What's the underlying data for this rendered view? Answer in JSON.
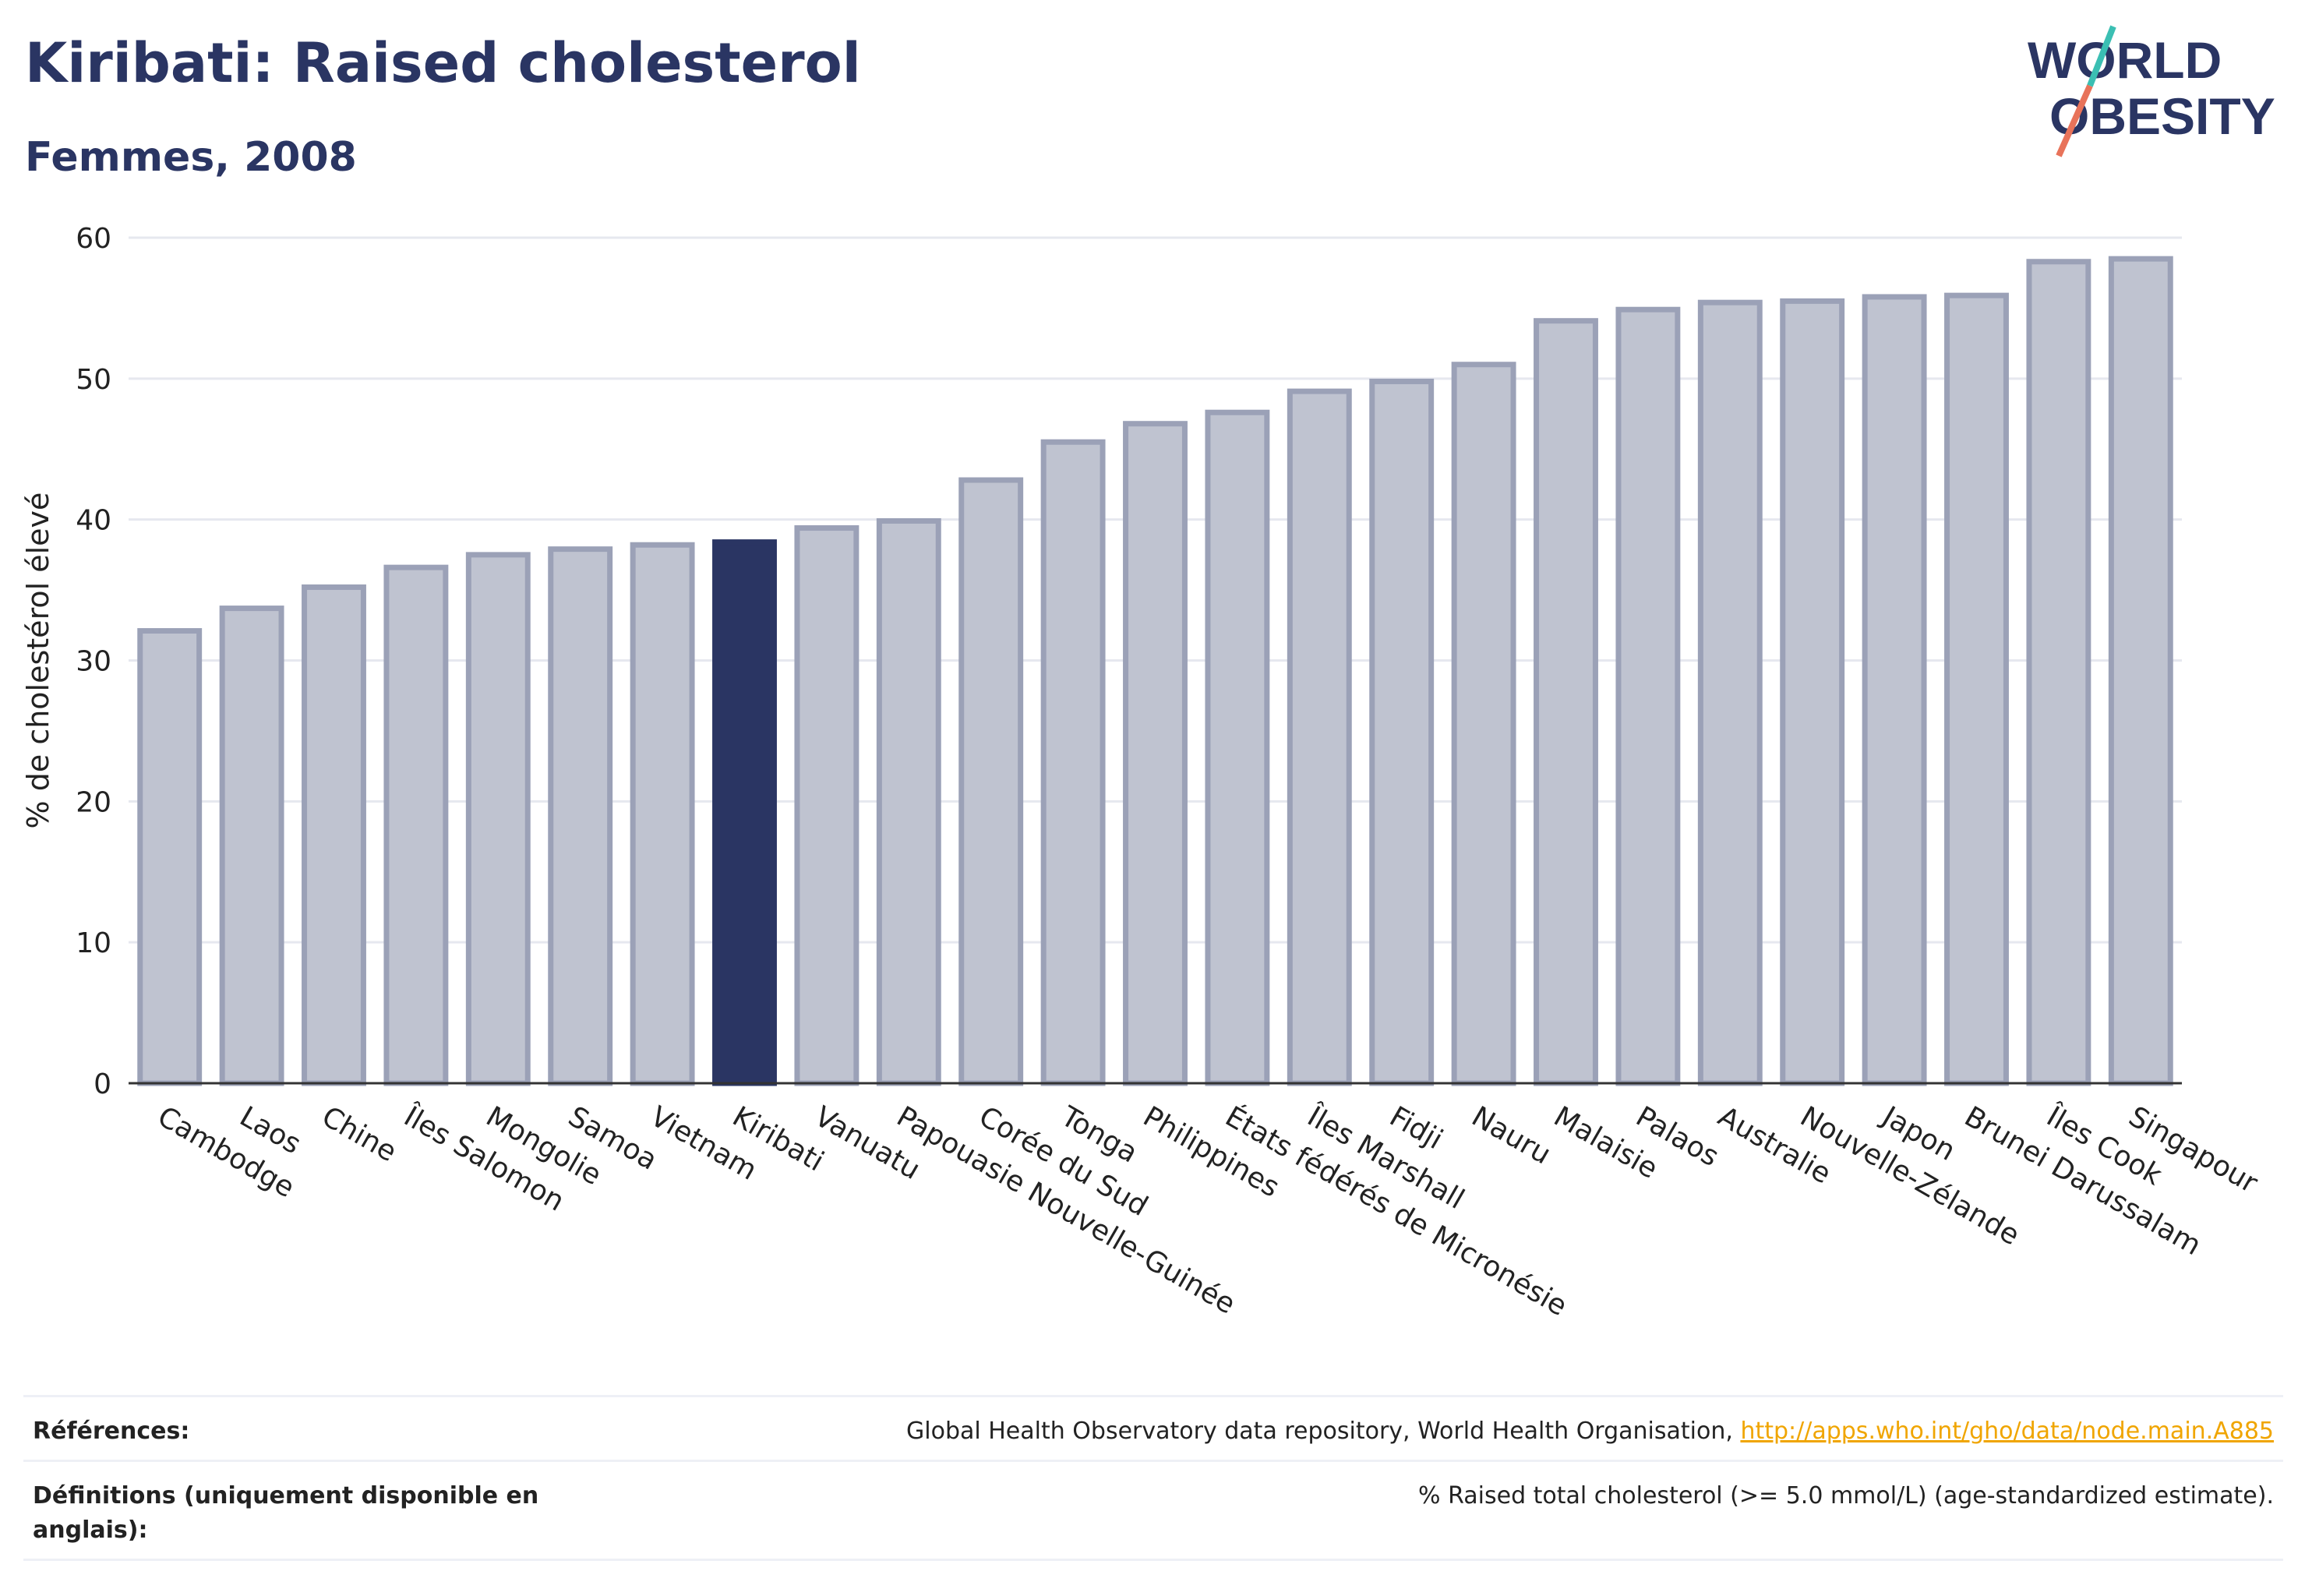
{
  "header": {
    "title": "Kiribati: Raised cholesterol",
    "subtitle": "Femmes, 2008"
  },
  "logo": {
    "line1": "WORLD",
    "line2": "OBESITY"
  },
  "colors": {
    "bar": "#bfc3d0",
    "bar_border": "#9ba1b7",
    "highlight": "#2a3563",
    "title": "#2a3563",
    "link": "#f0a500"
  },
  "chart_data": {
    "type": "bar",
    "title": "Kiribati: Raised cholesterol",
    "subtitle": "Femmes, 2008",
    "ylabel": "% de cholestérol élevé",
    "xlabel": "",
    "ylim": [
      0,
      60
    ],
    "yticks": [
      0,
      10,
      20,
      30,
      40,
      50,
      60
    ],
    "grid": true,
    "highlight": "Kiribati",
    "categories": [
      "Cambodge",
      "Laos",
      "Chine",
      "Îles Salomon",
      "Mongolie",
      "Samoa",
      "Vietnam",
      "Kiribati",
      "Vanuatu",
      "Papouasie Nouvelle-Guinée",
      "Corée du Sud",
      "Tonga",
      "Philippines",
      "États fédérés de Micronésie",
      "Îles Marshall",
      "Fidji",
      "Nauru",
      "Malaisie",
      "Palaos",
      "Australie",
      "Nouvelle-Zélande",
      "Japon",
      "Brunei Darussalam",
      "Îles Cook",
      "Singapour"
    ],
    "values": [
      32.1,
      33.7,
      35.2,
      36.6,
      37.5,
      37.9,
      38.2,
      38.4,
      39.4,
      39.9,
      42.8,
      45.5,
      46.8,
      47.6,
      49.1,
      49.8,
      51.0,
      54.1,
      54.9,
      55.4,
      55.5,
      55.8,
      55.9,
      58.3,
      58.5
    ]
  },
  "references": [
    {
      "label": "Références:",
      "text": "Global Health Observatory data repository, World Health Organisation, ",
      "link": "http://apps.who.int/gho/data/node.main.A885"
    },
    {
      "label": "Définitions (uniquement disponible en anglais):",
      "text": "% Raised total cholesterol (>= 5.0 mmol/L) (age-standardized estimate).",
      "link": ""
    }
  ]
}
